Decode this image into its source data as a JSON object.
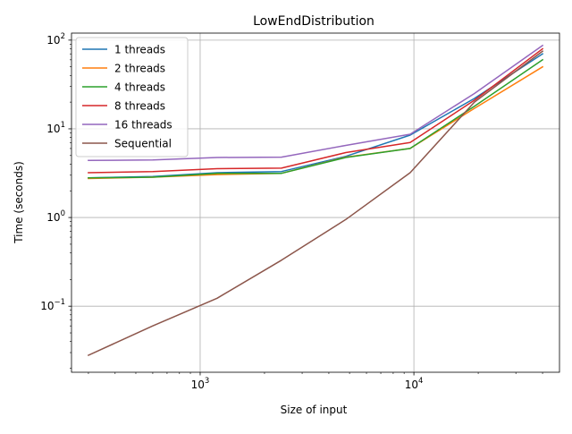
{
  "chart_data": {
    "type": "line",
    "title": "LowEndDistribution",
    "xlabel": "Size of input",
    "ylabel": "Time (seconds)",
    "xscale": "log",
    "yscale": "log",
    "xlim": [
      250,
      48000
    ],
    "ylim": [
      0.018,
      120
    ],
    "grid": true,
    "legend_placement": "top-left",
    "x_ticks": [
      {
        "value": 1000,
        "base": "10",
        "exp": "3"
      },
      {
        "value": 10000,
        "base": "10",
        "exp": "4"
      }
    ],
    "y_ticks": [
      {
        "value": 0.1,
        "base": "10",
        "exp": "−1"
      },
      {
        "value": 1,
        "base": "10",
        "exp": "0"
      },
      {
        "value": 10,
        "base": "10",
        "exp": "1"
      },
      {
        "value": 100,
        "base": "10",
        "exp": "2"
      }
    ],
    "x": [
      300,
      600,
      1200,
      2400,
      4800,
      9600,
      19200,
      40000
    ],
    "series": [
      {
        "name": "1 threads",
        "color": "#1f77b4",
        "values": [
          2.8,
          2.9,
          3.2,
          3.3,
          4.9,
          8.5,
          22,
          70
        ]
      },
      {
        "name": "2 threads",
        "color": "#ff7f0e",
        "values": [
          2.75,
          2.85,
          3.05,
          3.15,
          4.8,
          6.0,
          17,
          50
        ]
      },
      {
        "name": "4 threads",
        "color": "#2ca02c",
        "values": [
          2.8,
          2.85,
          3.15,
          3.15,
          4.75,
          6.0,
          18,
          60
        ]
      },
      {
        "name": "8 threads",
        "color": "#d62728",
        "values": [
          3.2,
          3.3,
          3.55,
          3.6,
          5.4,
          7.0,
          21,
          80
        ]
      },
      {
        "name": "16 threads",
        "color": "#9467bd",
        "values": [
          4.4,
          4.45,
          4.75,
          4.8,
          6.5,
          8.7,
          25,
          87
        ]
      },
      {
        "name": "Sequential",
        "color": "#8c564b",
        "values": [
          0.028,
          0.06,
          0.123,
          0.33,
          0.95,
          3.2,
          20,
          75
        ]
      }
    ]
  }
}
